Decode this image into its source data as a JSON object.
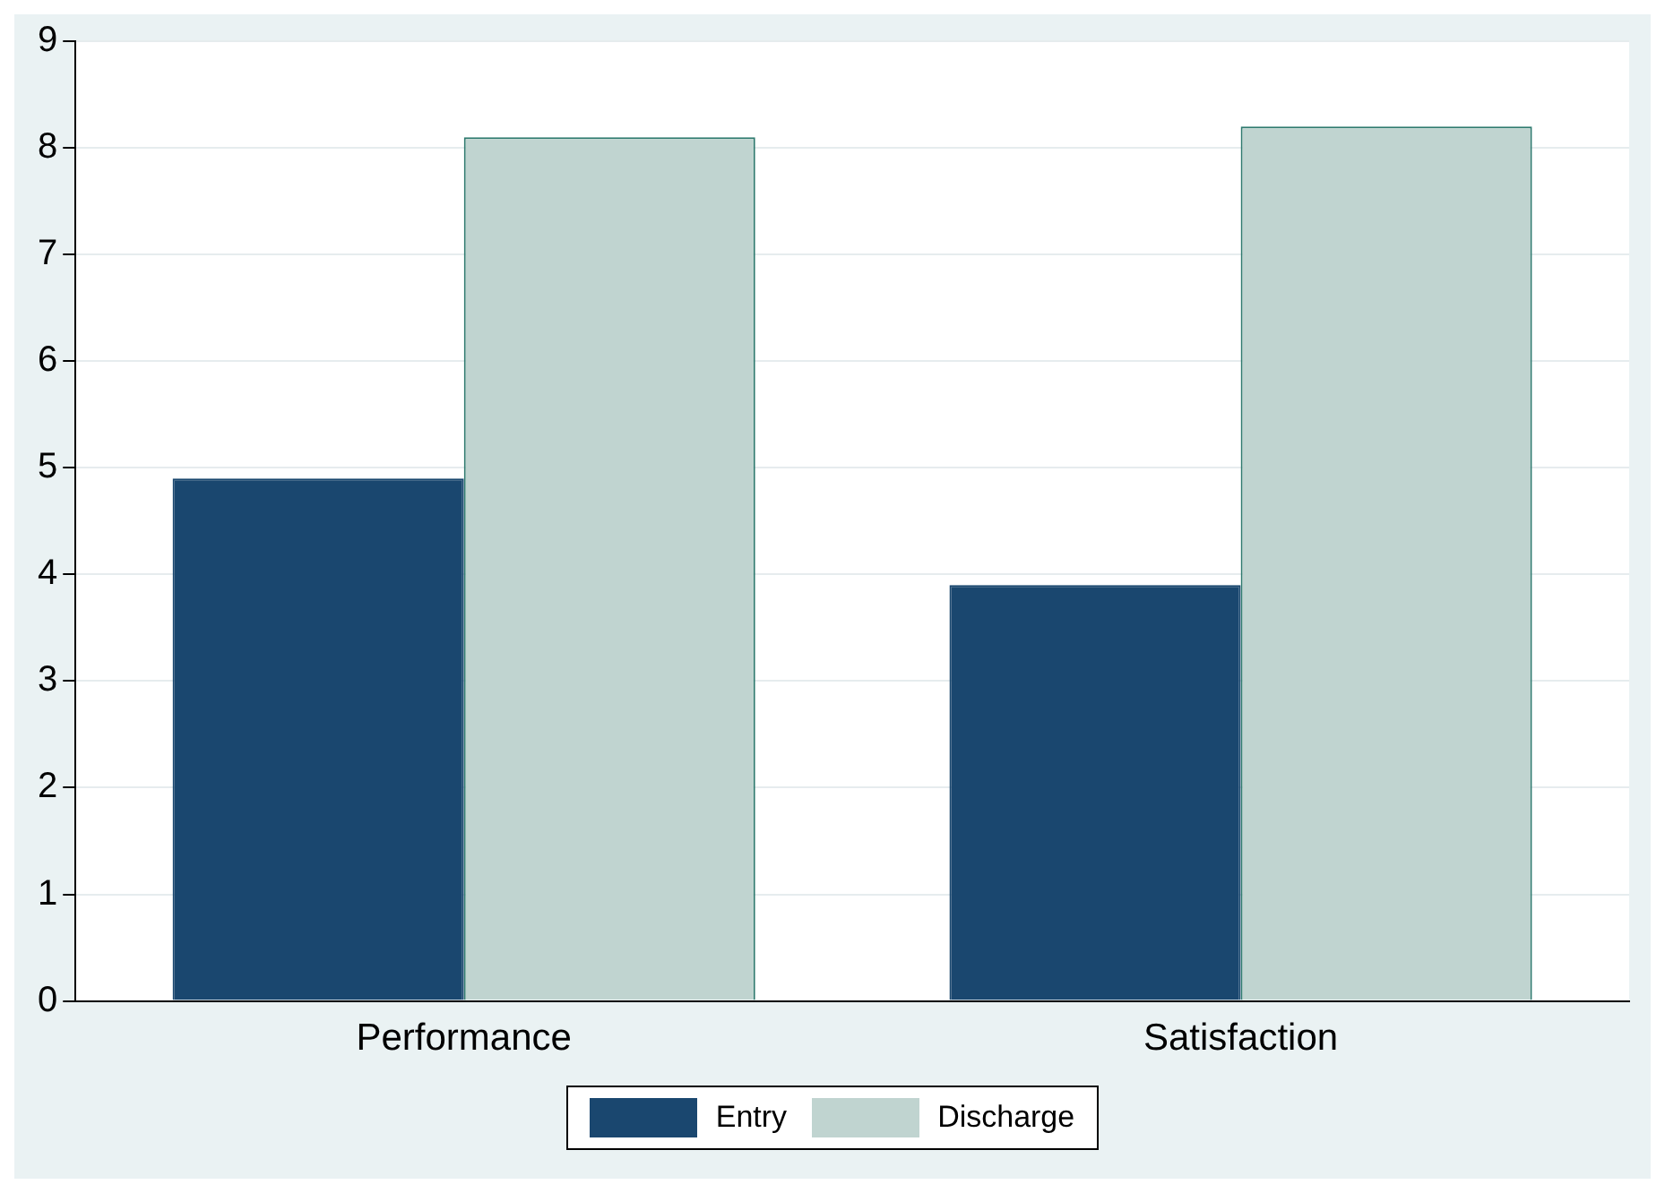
{
  "chart_data": {
    "type": "bar",
    "categories": [
      "Performance",
      "Satisfaction"
    ],
    "series": [
      {
        "name": "Entry",
        "color": "#1a476f",
        "values": [
          4.9,
          3.9
        ]
      },
      {
        "name": "Discharge",
        "color": "#c0d4d0",
        "values": [
          8.1,
          8.2
        ]
      }
    ],
    "ylim": [
      0,
      9
    ],
    "yticks": [
      0,
      1,
      2,
      3,
      4,
      5,
      6,
      7,
      8,
      9
    ],
    "grid": "y",
    "legend": "bottom"
  }
}
